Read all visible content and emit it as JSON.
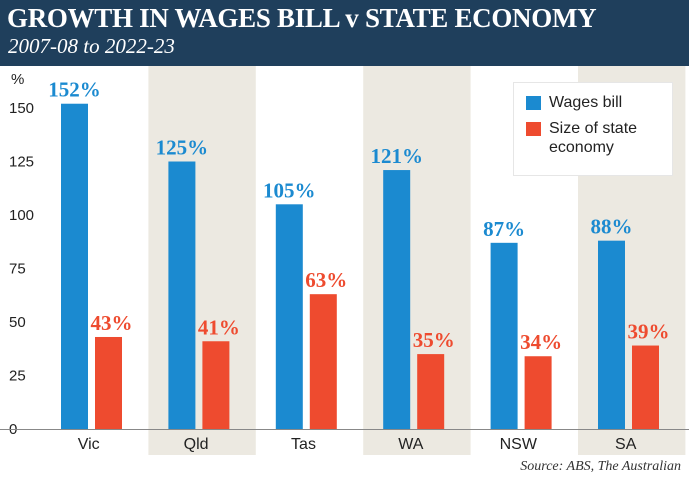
{
  "header": {
    "title": "GROWTH IN WAGES BILL v STATE ECONOMY",
    "subtitle": "2007-08 to 2022-23"
  },
  "source": "Source: ABS, The Australian",
  "colors": {
    "wages": "#1b8ad0",
    "economy": "#ee4b2f",
    "shade": "#ece9e1",
    "header": "#1f3f5c",
    "wages_label": "#1b8ad0",
    "economy_label": "#ee4b2f"
  },
  "chart_data": {
    "type": "bar",
    "title": "GROWTH IN WAGES BILL v STATE ECONOMY",
    "subtitle": "2007-08 to 2022-23",
    "xlabel": "",
    "ylabel": "%",
    "categories": [
      "Vic",
      "Qld",
      "Tas",
      "WA",
      "NSW",
      "SA"
    ],
    "yticks": [
      0,
      25,
      50,
      75,
      100,
      125,
      150
    ],
    "ylim": [
      0,
      160
    ],
    "grid": false,
    "legend_position": "top-right",
    "series": [
      {
        "name": "Wages bill",
        "values": [
          152,
          125,
          105,
          121,
          87,
          88
        ],
        "labels": [
          "152%",
          "125%",
          "105%",
          "121%",
          "87%",
          "88%"
        ]
      },
      {
        "name": "Size of state economy",
        "values": [
          43,
          41,
          63,
          35,
          34,
          39
        ],
        "labels": [
          "43%",
          "41%",
          "63%",
          "35%",
          "34%",
          "39%"
        ]
      }
    ]
  }
}
